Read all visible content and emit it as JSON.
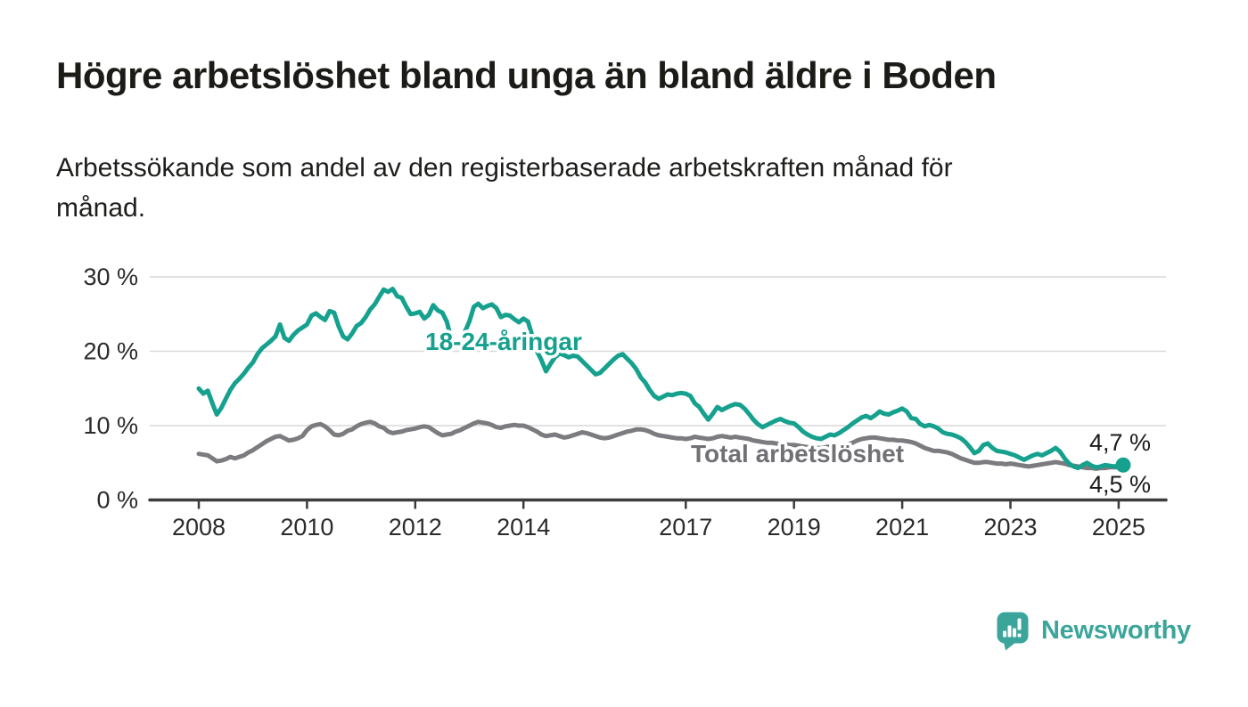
{
  "header": {
    "title": "Högre arbetslöshet bland unga än bland äldre i Boden",
    "subtitle_lines": [
      "Arbetssökande som andel av den registerbaserade arbetskraften månad för",
      "månad."
    ]
  },
  "chart_data": {
    "type": "line",
    "x_unit": "month",
    "x_start": "2008-01",
    "x_end": "2025-02",
    "x_tick_years": [
      2008,
      2010,
      2012,
      2014,
      2017,
      2019,
      2021,
      2023,
      2025
    ],
    "y_ticks": [
      {
        "value": 0,
        "label": "0 %"
      },
      {
        "value": 10,
        "label": "10 %"
      },
      {
        "value": 20,
        "label": "20 %"
      },
      {
        "value": 30,
        "label": "30 %"
      }
    ],
    "ylim": [
      0,
      30
    ],
    "grid": "horizontal",
    "series": [
      {
        "name": "18-24-åringar",
        "color": "#16a18e",
        "end_label": "4,7 %",
        "end_dot": true,
        "values": [
          15.0,
          14.3,
          14.7,
          13.0,
          11.5,
          12.4,
          13.6,
          14.8,
          15.7,
          16.3,
          17.0,
          17.8,
          18.5,
          19.6,
          20.4,
          20.9,
          21.4,
          22.0,
          23.6,
          21.8,
          21.4,
          22.2,
          22.8,
          23.2,
          23.6,
          24.8,
          25.1,
          24.6,
          24.2,
          25.4,
          25.2,
          23.4,
          22.0,
          21.6,
          22.4,
          23.4,
          23.8,
          24.6,
          25.6,
          26.3,
          27.3,
          28.3,
          28.0,
          28.4,
          27.4,
          27.2,
          26.0,
          25.0,
          25.1,
          25.3,
          24.4,
          24.9,
          26.2,
          25.5,
          25.2,
          24.0,
          21.6,
          21.3,
          21.2,
          22.6,
          24.0,
          26.0,
          26.4,
          25.8,
          26.1,
          26.3,
          25.8,
          24.6,
          24.9,
          24.8,
          24.3,
          23.9,
          24.4,
          24.0,
          22.0,
          20.0,
          18.8,
          17.3,
          18.3,
          19.2,
          19.7,
          19.5,
          19.2,
          19.4,
          19.3,
          18.7,
          18.1,
          17.5,
          16.9,
          17.1,
          17.7,
          18.3,
          18.9,
          19.4,
          19.6,
          19.0,
          18.4,
          17.6,
          16.5,
          15.8,
          14.8,
          14.0,
          13.6,
          13.9,
          14.2,
          14.1,
          14.3,
          14.4,
          14.3,
          14.0,
          13.0,
          12.5,
          11.6,
          10.8,
          11.6,
          12.5,
          12.1,
          12.4,
          12.7,
          12.9,
          12.8,
          12.3,
          11.6,
          10.8,
          10.2,
          9.8,
          10.1,
          10.4,
          10.7,
          10.9,
          10.6,
          10.4,
          10.3,
          9.8,
          9.2,
          8.8,
          8.5,
          8.3,
          8.2,
          8.5,
          8.8,
          8.7,
          9.0,
          9.4,
          9.8,
          10.3,
          10.7,
          11.1,
          11.3,
          11.0,
          11.4,
          11.9,
          11.6,
          11.5,
          11.8,
          12.0,
          12.3,
          11.9,
          11.0,
          10.9,
          10.2,
          9.9,
          10.1,
          9.9,
          9.6,
          9.1,
          8.9,
          8.8,
          8.6,
          8.3,
          7.8,
          7.1,
          6.3,
          6.6,
          7.4,
          7.6,
          7.0,
          6.6,
          6.5,
          6.4,
          6.2,
          6.0,
          5.7,
          5.4,
          5.7,
          6.0,
          6.2,
          6.0,
          6.3,
          6.6,
          7.0,
          6.5,
          5.6,
          4.9,
          4.5,
          4.3,
          4.7,
          5.0,
          4.6,
          4.4,
          4.5,
          4.7,
          4.6,
          4.5,
          4.6,
          4.7
        ]
      },
      {
        "name": "Total arbetslöshet",
        "color": "#7c7b7f",
        "label_color": "#717074",
        "end_label": "4,5 %",
        "end_dot": false,
        "values": [
          6.2,
          6.1,
          6.0,
          5.6,
          5.2,
          5.3,
          5.5,
          5.8,
          5.6,
          5.8,
          6.0,
          6.4,
          6.7,
          7.1,
          7.5,
          7.9,
          8.2,
          8.5,
          8.6,
          8.3,
          8.0,
          8.1,
          8.3,
          8.6,
          9.4,
          9.9,
          10.1,
          10.2,
          9.9,
          9.4,
          8.8,
          8.7,
          8.9,
          9.3,
          9.5,
          9.9,
          10.2,
          10.4,
          10.5,
          10.3,
          9.9,
          9.7,
          9.2,
          9.0,
          9.1,
          9.2,
          9.4,
          9.5,
          9.6,
          9.8,
          9.9,
          9.8,
          9.4,
          9.0,
          8.7,
          8.8,
          8.9,
          9.2,
          9.4,
          9.7,
          10.0,
          10.3,
          10.5,
          10.4,
          10.3,
          10.1,
          9.8,
          9.7,
          9.9,
          10.0,
          10.1,
          10.0,
          10.0,
          9.8,
          9.5,
          9.2,
          8.8,
          8.6,
          8.7,
          8.8,
          8.6,
          8.4,
          8.5,
          8.7,
          8.9,
          9.1,
          9.0,
          8.8,
          8.6,
          8.4,
          8.3,
          8.4,
          8.6,
          8.8,
          9.0,
          9.2,
          9.3,
          9.5,
          9.5,
          9.4,
          9.2,
          8.9,
          8.7,
          8.6,
          8.5,
          8.4,
          8.3,
          8.3,
          8.2,
          8.3,
          8.5,
          8.4,
          8.3,
          8.2,
          8.3,
          8.5,
          8.6,
          8.5,
          8.4,
          8.5,
          8.4,
          8.3,
          8.2,
          8.0,
          7.9,
          7.8,
          7.7,
          7.7,
          7.6,
          7.5,
          7.5,
          7.4,
          7.4,
          7.3,
          7.2,
          7.1,
          7.0,
          7.0,
          7.0,
          7.1,
          7.2,
          7.2,
          7.3,
          7.4,
          7.5,
          7.7,
          8.0,
          8.2,
          8.3,
          8.4,
          8.4,
          8.3,
          8.2,
          8.1,
          8.1,
          8.0,
          8.0,
          7.9,
          7.8,
          7.6,
          7.3,
          7.0,
          6.8,
          6.6,
          6.6,
          6.5,
          6.4,
          6.2,
          5.9,
          5.6,
          5.4,
          5.2,
          5.0,
          5.0,
          5.1,
          5.1,
          5.0,
          4.9,
          4.9,
          4.8,
          4.9,
          4.8,
          4.7,
          4.6,
          4.5,
          4.6,
          4.7,
          4.8,
          4.9,
          5.0,
          5.1,
          5.0,
          4.9,
          4.7,
          4.6,
          4.5,
          4.4,
          4.3,
          4.3,
          4.2,
          4.3,
          4.3,
          4.4,
          4.4,
          4.4,
          4.5
        ]
      }
    ]
  },
  "branding": {
    "logo_text": "Newsworthy",
    "logo_color": "#3ba59b",
    "logo_icon": "speech-bubble-bar-chart"
  }
}
